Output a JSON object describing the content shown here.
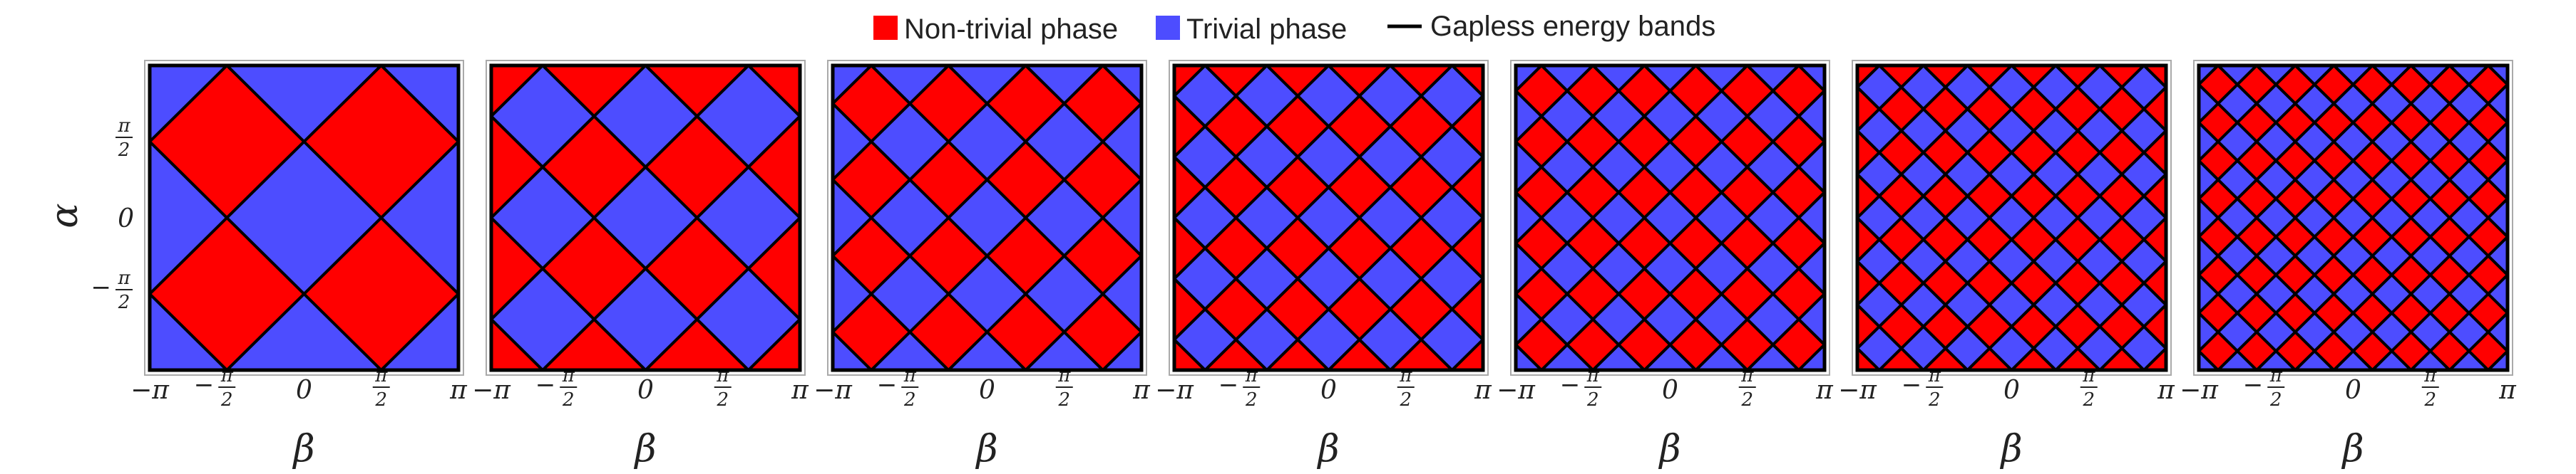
{
  "legend": {
    "items": [
      {
        "label": "Non-trivial phase",
        "kind": "swatch",
        "color": "#ff0000"
      },
      {
        "label": "Trivial phase",
        "kind": "swatch",
        "color": "#4d4dff"
      },
      {
        "label": "Gapless energy bands",
        "kind": "line",
        "color": "#000000"
      }
    ]
  },
  "chart_data": {
    "type": "heatmap",
    "layout": "7 panels in a row, shared alpha axis",
    "xlabel": "β",
    "ylabel": "α",
    "xlim": [
      "-π",
      "π"
    ],
    "ylim": [
      "-π",
      "π"
    ],
    "x_ticks": [
      {
        "main": "−π",
        "kind": "simple"
      },
      {
        "main": "π",
        "kind": "frac",
        "sign": "−",
        "den": "2"
      },
      {
        "main": "0",
        "kind": "simple"
      },
      {
        "main": "π",
        "kind": "frac",
        "sign": "",
        "den": "2"
      },
      {
        "main": "π",
        "kind": "simple"
      }
    ],
    "y_ticks": [
      {
        "main": "π",
        "kind": "frac",
        "sign": "",
        "den": "2"
      },
      {
        "main": "0",
        "kind": "simple"
      },
      {
        "main": "π",
        "kind": "frac",
        "sign": "−",
        "den": "2"
      }
    ],
    "colors": {
      "nontrivial": "#ff0000",
      "trivial": "#4d4dff",
      "boundary": "#000000"
    },
    "boundary_meaning": "Gapless energy bands",
    "panels": [
      {
        "diamonds_across": 2
      },
      {
        "diamonds_across": 3
      },
      {
        "diamonds_across": 4
      },
      {
        "diamonds_across": 5
      },
      {
        "diamonds_across": 6
      },
      {
        "diamonds_across": 7
      },
      {
        "diamonds_across": 8
      }
    ]
  }
}
